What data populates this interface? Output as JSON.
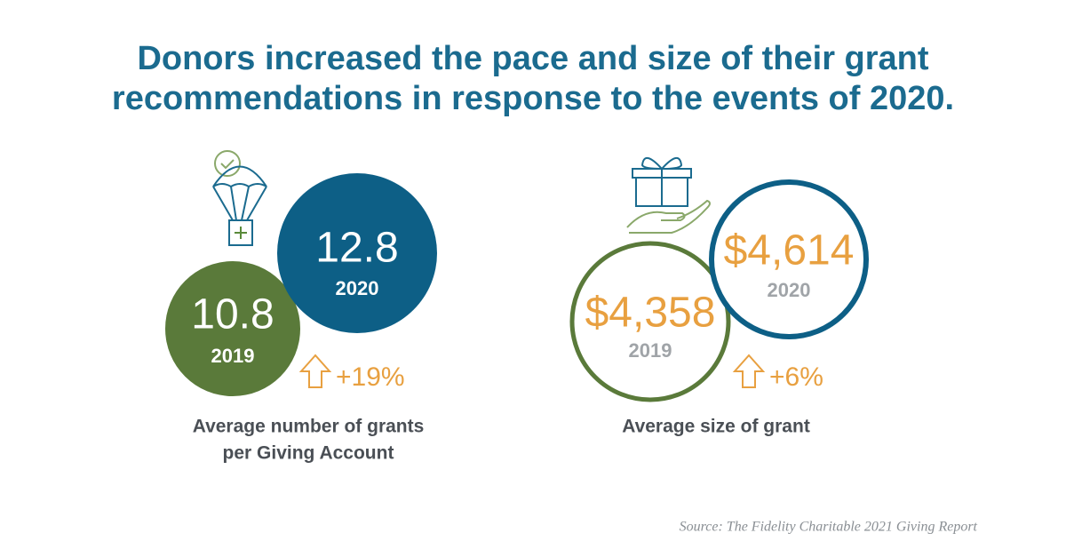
{
  "header": {
    "title_lines": [
      "Donors increased the pace and size of their grant",
      "recommendations in response to the events of 2020."
    ]
  },
  "panels": [
    {
      "previous": {
        "value": "10.8",
        "year": "2019"
      },
      "current": {
        "value": "12.8",
        "year": "2020"
      },
      "change": "+19%",
      "caption_lines": [
        "Average number of grants",
        "per Giving Account"
      ]
    },
    {
      "previous": {
        "value": "$4,358",
        "year": "2019"
      },
      "current": {
        "value": "$4,614",
        "year": "2020"
      },
      "change": "+6%",
      "caption_lines": [
        "Average size of grant"
      ]
    }
  ],
  "footer": {
    "source": "Source: The Fidelity Charitable 2021 Giving Report"
  }
}
